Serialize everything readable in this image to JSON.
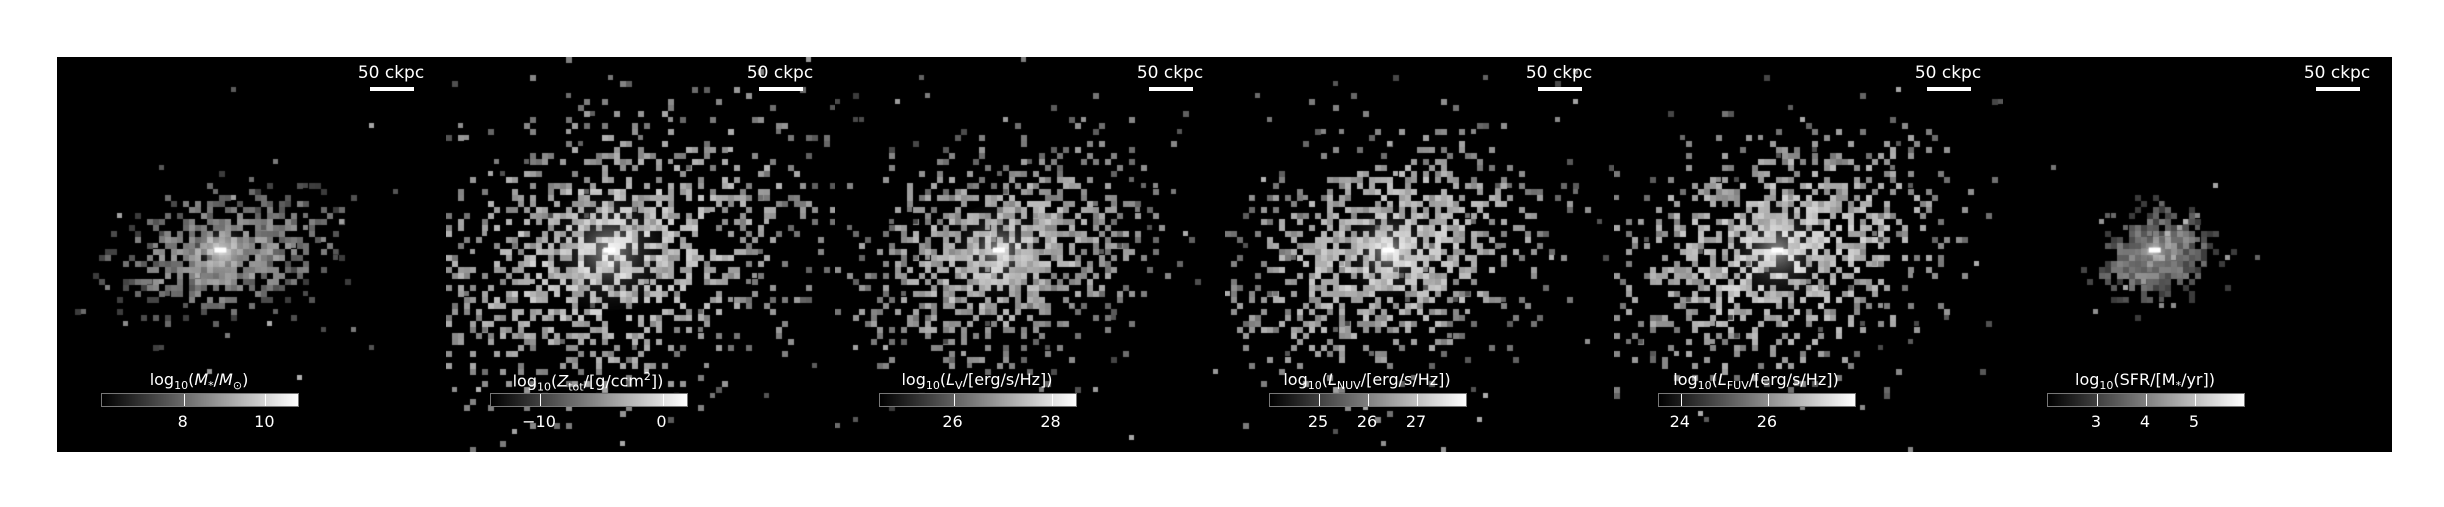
{
  "chart_data": [
    {
      "type": "heatmap",
      "scalebar": "50 ckpc",
      "colorbar_label": "log<sub>10</sub>(<i>M</i><sub>*</sub>/<i>M</i><sub>⊙</sub>)",
      "colorbar_range": [
        6.0,
        10.8
      ],
      "ticks": [
        8,
        10
      ],
      "colormap": "grayscale",
      "map": {
        "cx": 0.42,
        "cy": 0.49,
        "sx": 0.11,
        "sy": 0.07,
        "spread": 0.55,
        "density": 0.55,
        "core": 1.0,
        "halo": 0.55
      }
    },
    {
      "type": "heatmap",
      "scalebar": "50 ckpc",
      "colorbar_label": "log<sub>10</sub>(<i>Z</i><sub>tot</sub>/[g/ccm<sup>2</sup>])",
      "colorbar_range": [
        -14.0,
        2.0
      ],
      "ticks": [
        -10,
        0
      ],
      "colormap": "grayscale",
      "map": {
        "cx": 0.42,
        "cy": 0.49,
        "sx": 0.22,
        "sy": 0.17,
        "spread": 1.0,
        "density": 0.9,
        "core": 1.0,
        "halo": 0.75
      }
    },
    {
      "type": "heatmap",
      "scalebar": "50 ckpc",
      "colorbar_label": "log<sub>10</sub>(<i>L</i><sub>V</sub>/[erg/s/Hz])",
      "colorbar_range": [
        24.5,
        28.5
      ],
      "ticks": [
        26,
        28
      ],
      "colormap": "grayscale",
      "map": {
        "cx": 0.42,
        "cy": 0.49,
        "sx": 0.17,
        "sy": 0.13,
        "spread": 0.85,
        "density": 0.75,
        "core": 1.0,
        "halo": 0.7
      }
    },
    {
      "type": "heatmap",
      "scalebar": "50 ckpc",
      "colorbar_label": "log<sub>10</sub>(<i>L</i><sub>NUV</sub>/[erg/s/Hz])",
      "colorbar_range": [
        24.0,
        28.0
      ],
      "ticks": [
        25,
        26,
        27
      ],
      "colormap": "grayscale",
      "map": {
        "cx": 0.42,
        "cy": 0.49,
        "sx": 0.17,
        "sy": 0.14,
        "spread": 0.9,
        "density": 0.8,
        "core": 1.0,
        "halo": 0.75
      }
    },
    {
      "type": "heatmap",
      "scalebar": "50 ckpc",
      "colorbar_label": "log<sub>10</sub>(<i>L</i><sub>FUV</sub>/[erg/s/Hz])",
      "colorbar_range": [
        23.5,
        28.0
      ],
      "ticks": [
        24,
        26
      ],
      "colormap": "grayscale",
      "map": {
        "cx": 0.42,
        "cy": 0.49,
        "sx": 0.18,
        "sy": 0.14,
        "spread": 0.9,
        "density": 0.8,
        "core": 1.0,
        "halo": 0.78
      }
    },
    {
      "type": "heatmap",
      "scalebar": "50 ckpc",
      "colorbar_label": "log<sub>10</sub>(SFR/[M<sub>*</sub>/yr])",
      "colorbar_range": [
        2.0,
        6.0
      ],
      "ticks": [
        3,
        4,
        5
      ],
      "colormap": "grayscale",
      "map": {
        "cx": 0.39,
        "cy": 0.49,
        "sx": 0.05,
        "sy": 0.045,
        "spread": 0.35,
        "density": 0.5,
        "core": 1.0,
        "halo": 0.5
      }
    }
  ]
}
